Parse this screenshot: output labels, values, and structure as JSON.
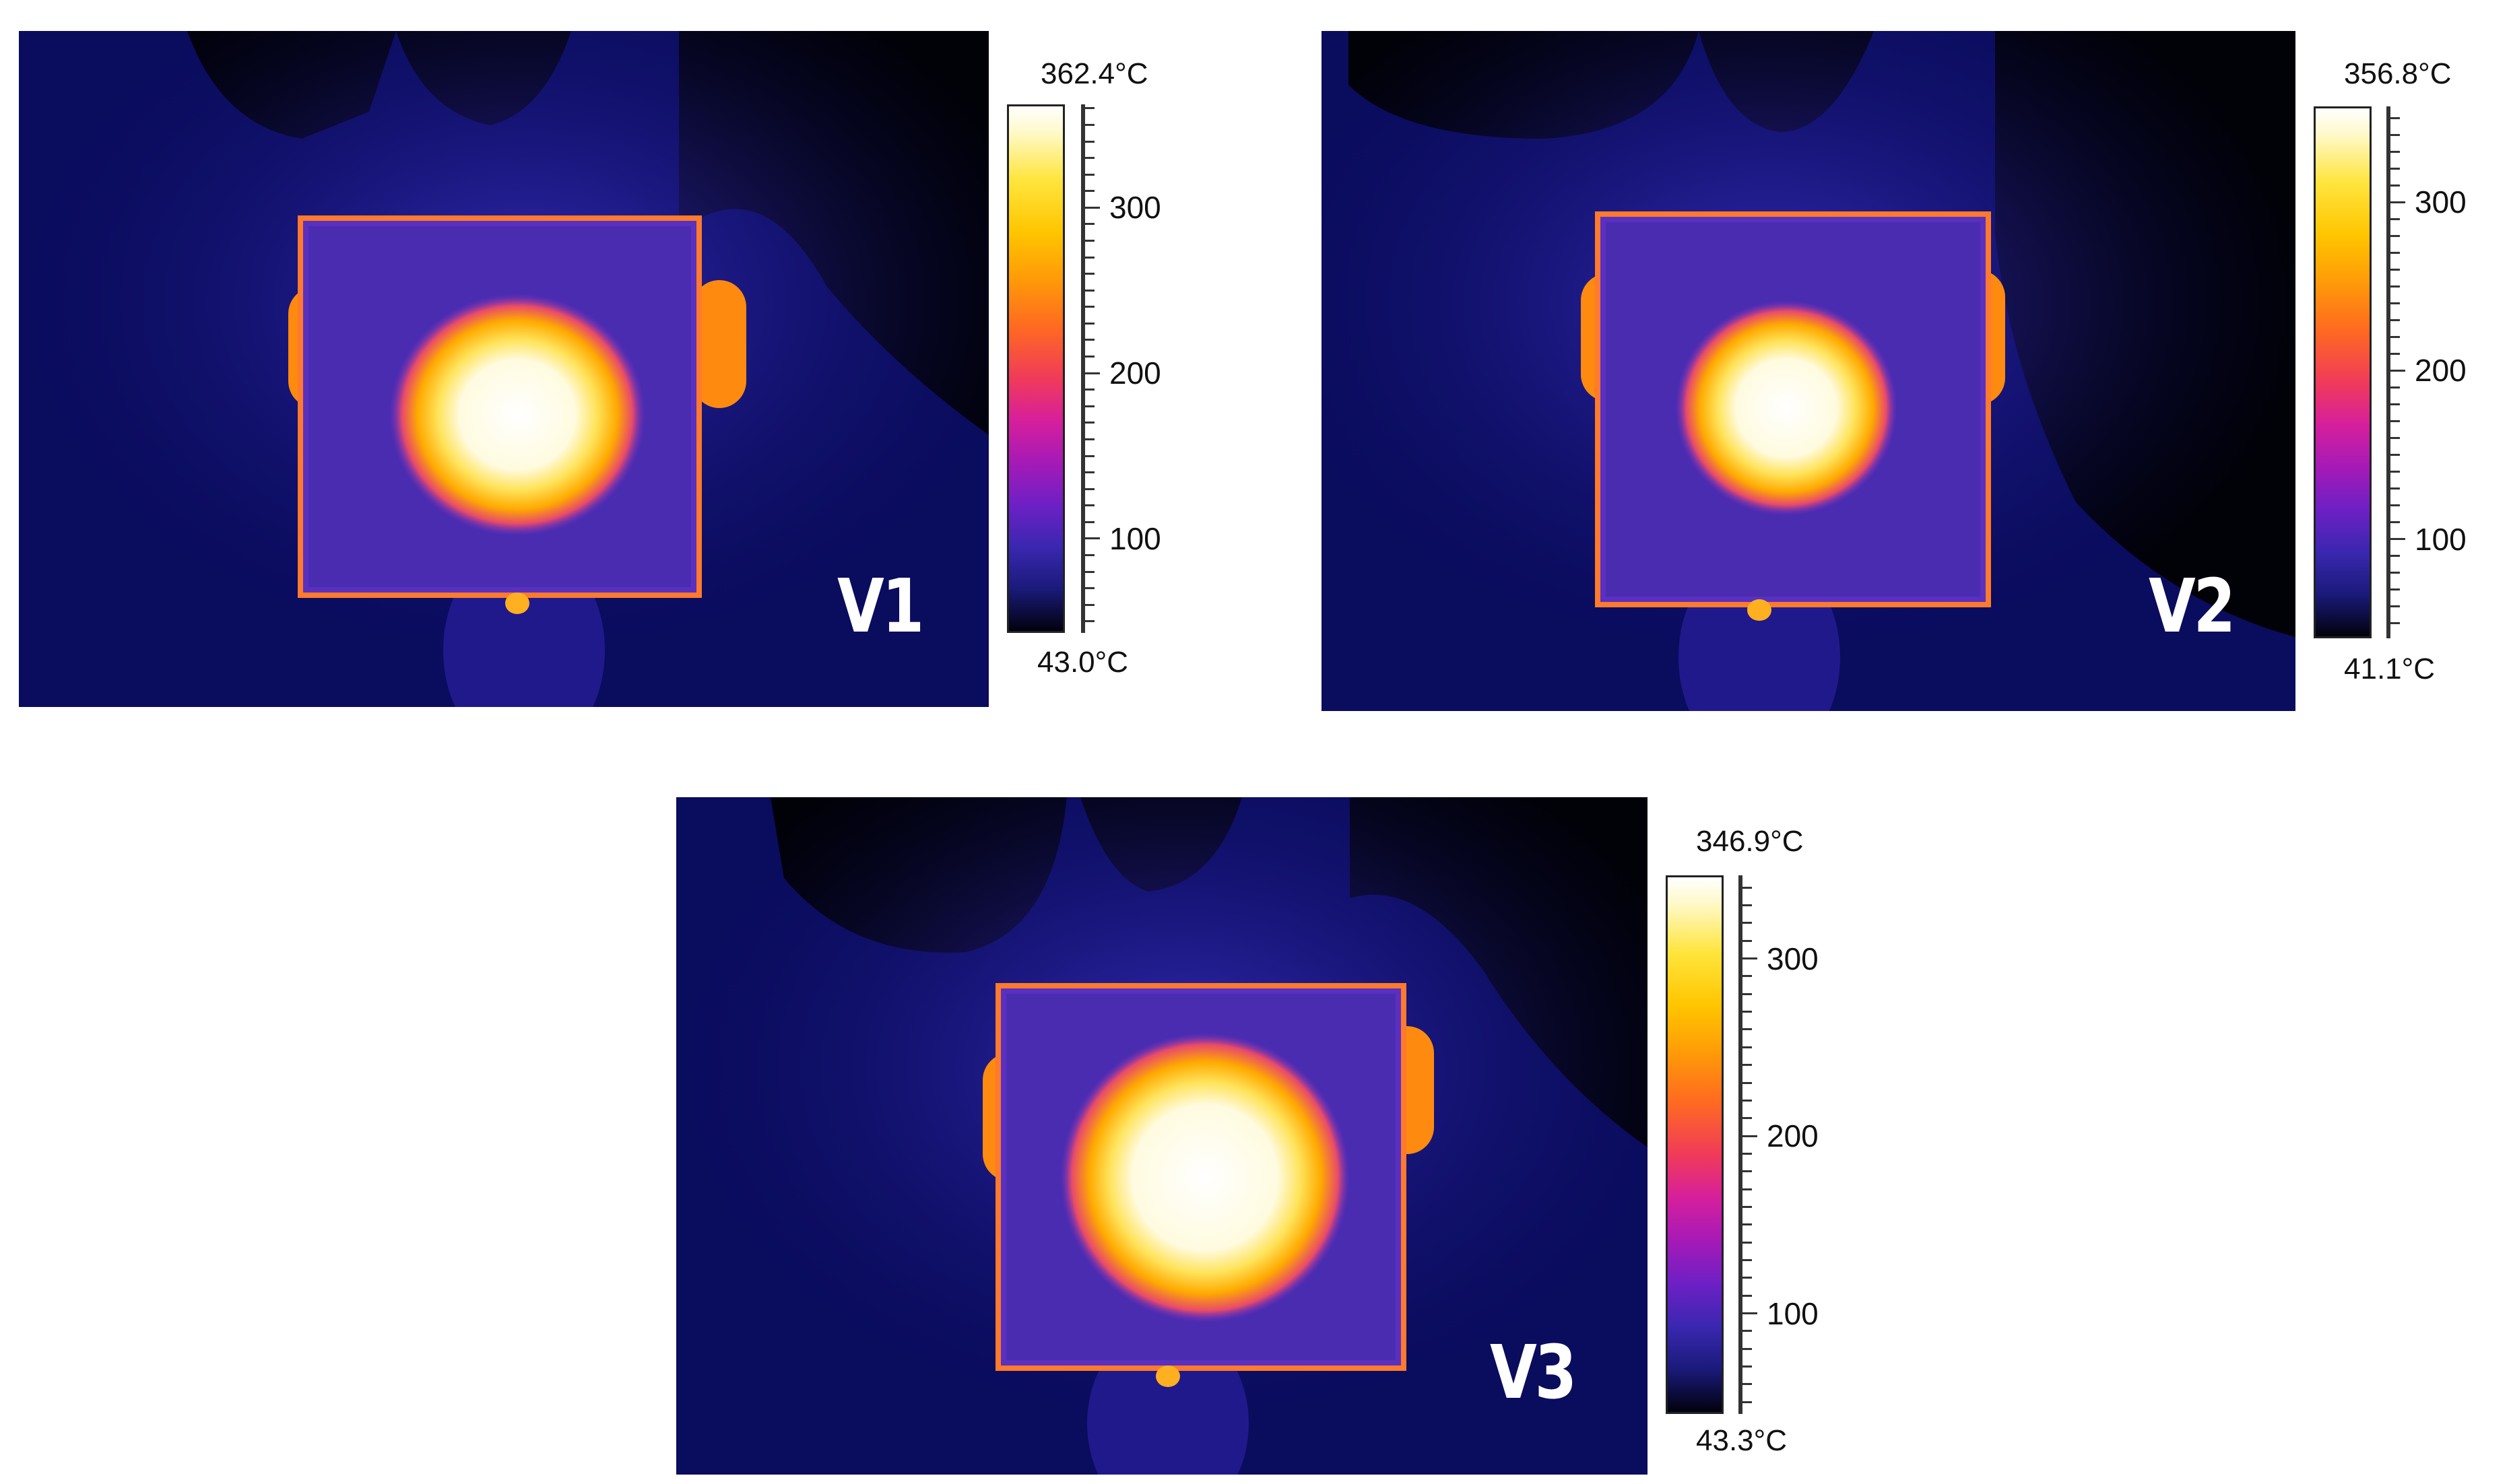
{
  "panels": [
    {
      "id": "v1",
      "label": "V1",
      "scale_max": "362.4°C",
      "scale_min": "43.0°C",
      "ticks": [
        "300",
        "200",
        "100"
      ],
      "tick_values": [
        300,
        200,
        100
      ],
      "max_value": 362.4,
      "min_value": 43.0
    },
    {
      "id": "v2",
      "label": "V2",
      "scale_max": "356.8°C",
      "scale_min": "41.1°C",
      "ticks": [
        "300",
        "200",
        "100"
      ],
      "tick_values": [
        300,
        200,
        100
      ],
      "max_value": 356.8,
      "min_value": 41.1
    },
    {
      "id": "v3",
      "label": "V3",
      "scale_max": "346.9°C",
      "scale_min": "43.3°C",
      "ticks": [
        "300",
        "200",
        "100"
      ],
      "tick_values": [
        300,
        200,
        100
      ],
      "max_value": 346.9,
      "min_value": 43.3
    }
  ],
  "colors": {
    "background_dark": "#0a0c5e",
    "plate": "#4a2cb8",
    "hot_core": "#ffffff",
    "hot_ring": "#ffb000"
  }
}
